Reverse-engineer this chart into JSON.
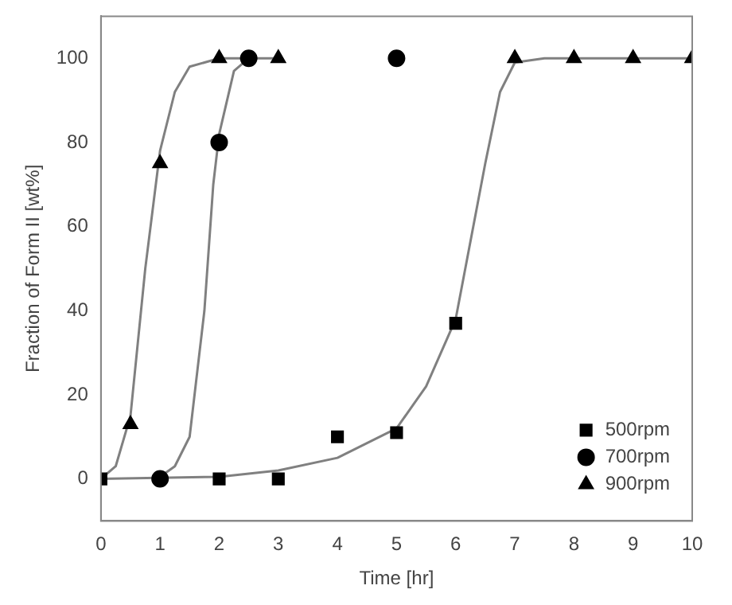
{
  "chart_data": {
    "type": "scatter",
    "xlabel": "Time [hr]",
    "ylabel": "Fraction of Form II [wt%]",
    "xlim": [
      0,
      10
    ],
    "ylim": [
      -10,
      110
    ],
    "xticks": [
      0,
      1,
      2,
      3,
      4,
      5,
      6,
      7,
      8,
      9,
      10
    ],
    "yticks": [
      0,
      20,
      40,
      60,
      80,
      100
    ],
    "grid": false,
    "legend": "bottom right",
    "series": [
      {
        "name": "500rpm",
        "color": "#000000",
        "marker": "square",
        "x": [
          0,
          2,
          3,
          4,
          5,
          6
        ],
        "values": [
          0,
          0,
          0,
          10,
          11,
          37
        ]
      },
      {
        "name": "700rpm",
        "color": "#000000",
        "marker": "circle",
        "x": [
          1,
          2,
          2.5,
          5
        ],
        "values": [
          0,
          80,
          100,
          100
        ]
      },
      {
        "name": "900rpm",
        "color": "#000000",
        "marker": "triangle",
        "x": [
          0.5,
          1,
          2,
          3,
          7,
          8,
          9,
          10
        ],
        "values": [
          13,
          75,
          100,
          100,
          100,
          100,
          100,
          100
        ]
      },
      {
        "type": "line",
        "color": "#808080",
        "marker": "none",
        "x": [
          0,
          2,
          3,
          4,
          5,
          5.5,
          6,
          6.5,
          6.75,
          7,
          7.5,
          10
        ],
        "values": [
          0,
          0.5,
          2,
          5,
          12,
          22,
          38,
          75,
          92,
          99,
          100,
          100
        ]
      },
      {
        "type": "line",
        "color": "#808080",
        "marker": "none",
        "x": [
          1,
          1.25,
          1.5,
          1.75,
          1.9,
          2,
          2.25,
          2.5,
          3
        ],
        "values": [
          0.5,
          3,
          10,
          40,
          70,
          82,
          97,
          100,
          100
        ]
      },
      {
        "type": "line",
        "color": "#808080",
        "marker": "none",
        "x": [
          0,
          0.25,
          0.5,
          0.75,
          1,
          1.25,
          1.5,
          2,
          2.5
        ],
        "values": [
          0,
          3,
          15,
          50,
          78,
          92,
          98,
          100,
          100
        ]
      }
    ]
  }
}
